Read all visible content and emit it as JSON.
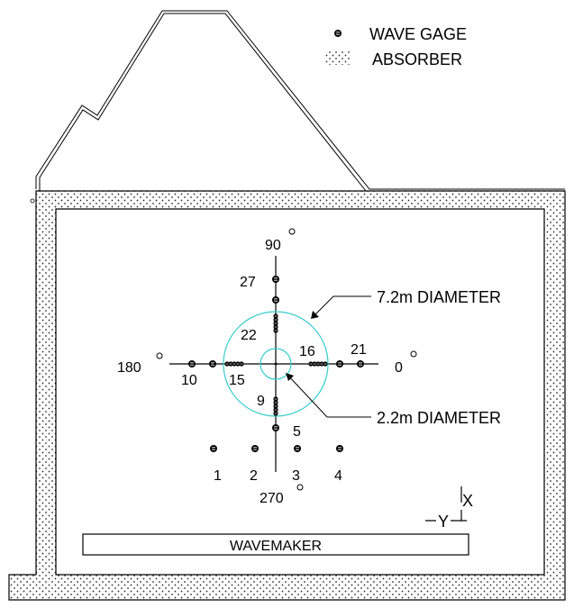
{
  "legend": {
    "wave_gage": "WAVE GAGE",
    "absorber": "ABSORBER"
  },
  "colors": {
    "line": "#000000",
    "circle": "#33cccc",
    "background": "#ffffff"
  },
  "angles": {
    "deg_0": "0",
    "deg_90": "90",
    "deg_180": "180",
    "deg_270": "270"
  },
  "diameters": {
    "large": "7.2m  DIAMETER",
    "small": "2.2m  DIAMETER"
  },
  "gage_numbers": {
    "g1": "1",
    "g2": "2",
    "g3": "3",
    "g4": "4",
    "g5": "5",
    "g9": "9",
    "g10": "10",
    "g15": "15",
    "g16": "16",
    "g21": "21",
    "g22": "22",
    "g27": "27"
  },
  "axes": {
    "x": "X",
    "y": "Y"
  },
  "wavemaker": "WAVEMAKER"
}
